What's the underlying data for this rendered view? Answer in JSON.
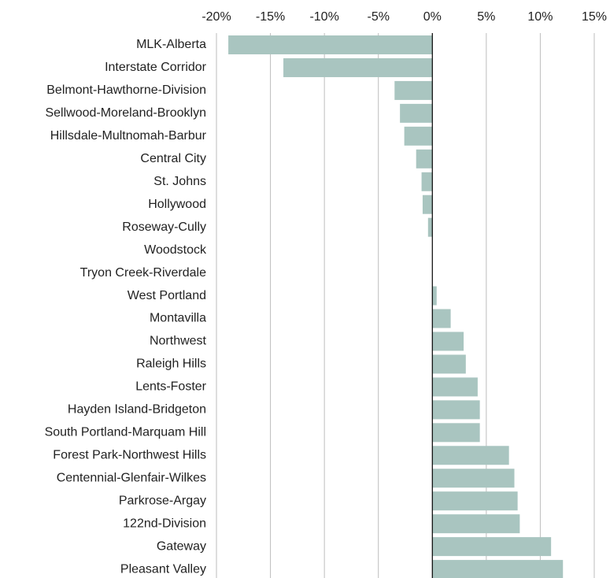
{
  "chart_data": {
    "type": "barh",
    "categories": [
      "MLK-Alberta",
      "Interstate Corridor",
      "Belmont-Hawthorne-Division",
      "Sellwood-Moreland-Brooklyn",
      "Hillsdale-Multnomah-Barbur",
      "Central City",
      "St. Johns",
      "Hollywood",
      "Roseway-Cully",
      "Woodstock",
      "Tryon Creek-Riverdale",
      "West Portland",
      "Montavilla",
      "Northwest",
      "Raleigh Hills",
      "Lents-Foster",
      "Hayden Island-Bridgeton",
      "South Portland-Marquam Hill",
      "Forest Park-Northwest Hills",
      "Centennial-Glenfair-Wilkes",
      "Parkrose-Argay",
      "122nd-Division",
      "Gateway",
      "Pleasant Valley"
    ],
    "values": [
      -18.9,
      -13.8,
      -3.5,
      -3.0,
      -2.6,
      -1.5,
      -1.0,
      -0.9,
      -0.4,
      0,
      0,
      0.4,
      1.7,
      2.9,
      3.1,
      4.2,
      4.4,
      4.4,
      7.1,
      7.6,
      7.9,
      8.1,
      11.0,
      12.1
    ],
    "color": "#a9c5c0",
    "xlim": [
      -20,
      15
    ],
    "xticks": [
      {
        "value": -20,
        "label": "-20%"
      },
      {
        "value": -15,
        "label": "-15%"
      },
      {
        "value": -10,
        "label": "-10%"
      },
      {
        "value": -5,
        "label": "-5%"
      },
      {
        "value": 0,
        "label": "0%"
      },
      {
        "value": 5,
        "label": "5%"
      },
      {
        "value": 10,
        "label": "10%"
      },
      {
        "value": 15,
        "label": "15%"
      }
    ],
    "grid": true
  }
}
